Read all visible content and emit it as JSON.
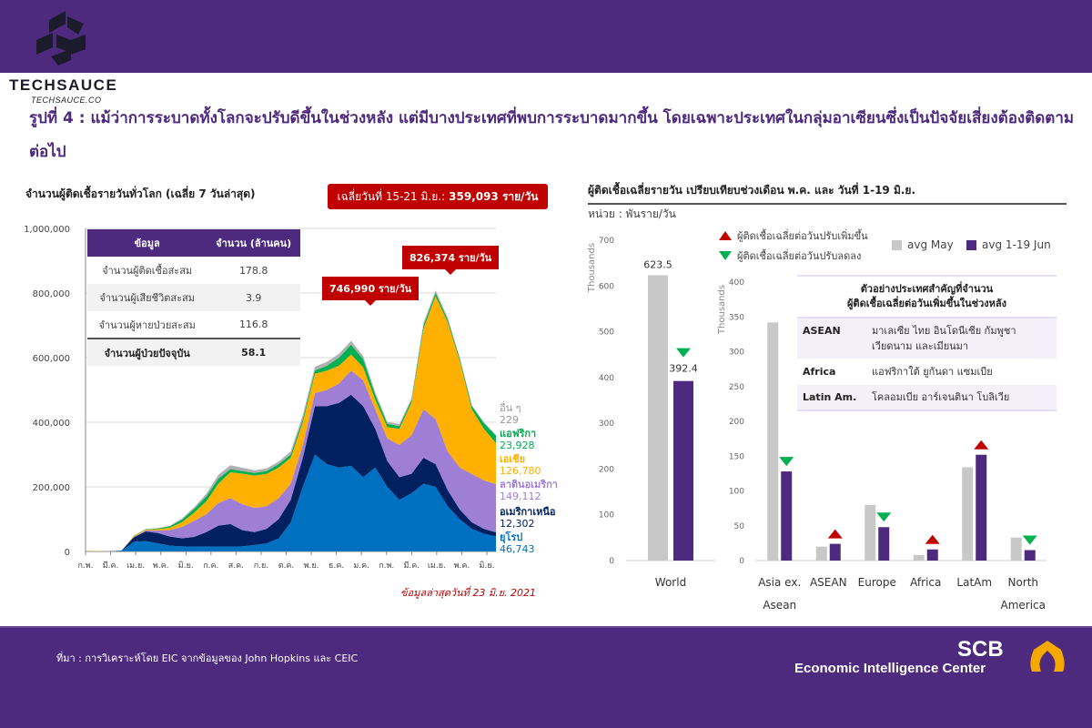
{
  "header": {
    "brand_name": "TECHSAUCE",
    "brand_url": "TECHSAUCE.CO",
    "headline": "รูปที่ 4 : แม้ว่าการระบาดทั้งโลกจะปรับดีขึ้นในช่วงหลัง แต่มีบางประเทศที่พบการระบาดมากขึ้น โดยเฉพาะประเทศในกลุ่มอาเซียนซึ่งเป็นปัจจัยเสี่ยงต้องติดตามต่อไป"
  },
  "left_panel": {
    "title": "จำนวนผู้ติดเชื้อรายวันทั่วโลก  (เฉลี่ย 7 วันล่าสุด)",
    "avg_badge_prefix": "เฉลี่ยวันที่ 15-21 มิ.ย.:",
    "avg_badge_value": "359,093 ราย/วัน",
    "callouts": [
      "746,990 ราย/วัน",
      "826,374 ราย/วัน"
    ],
    "table": {
      "headers": [
        "ข้อมูล",
        "จำนวน (ล้านคน)"
      ],
      "rows": [
        {
          "label": "จำนวนผู้ติดเชื้อสะสม",
          "value": "178.8"
        },
        {
          "label": "จำนวนผู้เสียชีวิตสะสม",
          "value": "3.9"
        },
        {
          "label": "จำนวนผู้หายป่วยสะสม",
          "value": "116.8"
        },
        {
          "label": "จำนวนผู้ป่วยปัจจุบัน",
          "value": "58.1"
        }
      ]
    },
    "note": "ข้อมูลล่าสุดวันที่ 23 มิ.ย. 2021"
  },
  "right_panel": {
    "title": "ผู้ติดเชื้อเฉลี่ยรายวัน เปรียบเทียบช่วงเดือน พ.ค. และ วันที่ 1-19 มิ.ย.",
    "unit": "หน่วย : พันราย/วัน",
    "legend_up": "ผู้ติดเชื้อเฉลี่ยต่อวันปรับเพิ่มขึ้น",
    "legend_down": "ผู้ติดเชื้อเฉลี่ยต่อวันปรับลดลง",
    "info_box": {
      "heading_line1": "ตัวอย่างประเทศสำคัญที่จำนวน",
      "heading_line2": "ผู้ติดเชื้อเฉลี่ยต่อวันเพิ่มขึ้นในช่วงหลัง",
      "rows": [
        {
          "region": "ASEAN",
          "countries": "มาเลเซีย ไทย อินโดนีเซีย กัมพูชา เวียดนาม และเมียนมา"
        },
        {
          "region": "Africa",
          "countries": "แอฟริกาใต้ ยูกันดา แซมเบีย"
        },
        {
          "region": "Latin Am.",
          "countries": "โคลอมเบีย อาร์เจนตินา โบลิเวีย"
        }
      ]
    }
  },
  "footer": {
    "source": "ที่มา : การวิเคราะห์โดย EIC จากข้อมูลของ John Hopkins และ CEIC",
    "scb": "SCB",
    "eic": "Economic Intelligence Center"
  },
  "colors": {
    "brand_purple": "#4e2a7e",
    "alert_red": "#c00000",
    "down_green": "#00b050",
    "may_gray": "#c8c8c8"
  },
  "chart_data": [
    {
      "type": "area",
      "stacked": true,
      "title": "จำนวนผู้ติดเชื้อรายวันทั่วโลก  (เฉลี่ย 7 วันล่าสุด)",
      "xlabel": "",
      "ylabel": "",
      "ylim": [
        0,
        1000000
      ],
      "yticks": [
        0,
        200000,
        400000,
        600000,
        800000,
        1000000
      ],
      "ytick_labels": [
        "0",
        "200,000",
        "400,000",
        "600,000",
        "800,000",
        "1,000,000"
      ],
      "xtick_labels": [
        "ก.พ.",
        "มี.ค.",
        "เม.ย.",
        "พ.ค.",
        "มิ.ย.",
        "ก.ค.",
        "ส.ค.",
        "ก.ย.",
        "ต.ค.",
        "พ.ย.",
        "ธ.ค.",
        "ม.ค.",
        "ก.พ.",
        "มี.ค.",
        "เม.ย.",
        "พ.ค.",
        "มิ.ย."
      ],
      "grid": true,
      "x_points": 35,
      "series": [
        {
          "name": "ยุโรป",
          "latest": "46,743",
          "color": "#0070c0",
          "values": [
            0,
            0,
            0,
            2000,
            30000,
            32000,
            25000,
            18000,
            16000,
            15000,
            15000,
            15000,
            15000,
            16000,
            20000,
            25000,
            40000,
            90000,
            200000,
            300000,
            270000,
            260000,
            265000,
            230000,
            260000,
            200000,
            160000,
            180000,
            210000,
            200000,
            140000,
            100000,
            70000,
            55000,
            47000
          ]
        },
        {
          "name": "อเมริกาเหนือ",
          "latest": "12,302",
          "color": "#002060",
          "values": [
            0,
            0,
            0,
            1000,
            14000,
            30000,
            32000,
            28000,
            25000,
            30000,
            45000,
            65000,
            70000,
            50000,
            40000,
            45000,
            60000,
            70000,
            90000,
            150000,
            180000,
            200000,
            220000,
            220000,
            120000,
            80000,
            70000,
            60000,
            80000,
            70000,
            50000,
            30000,
            20000,
            15000,
            12300
          ]
        },
        {
          "name": "ลาตินอเมริกา",
          "latest": "149,112",
          "color": "#9f7fd6",
          "values": [
            0,
            0,
            0,
            0,
            1000,
            3000,
            8000,
            20000,
            35000,
            50000,
            55000,
            70000,
            80000,
            80000,
            75000,
            70000,
            65000,
            50000,
            40000,
            40000,
            50000,
            60000,
            75000,
            80000,
            60000,
            70000,
            100000,
            120000,
            150000,
            140000,
            120000,
            130000,
            150000,
            150000,
            149000
          ]
        },
        {
          "name": "เอเชีย",
          "latest": "126,780",
          "color": "#ffb000",
          "values": [
            0,
            1000,
            0,
            0,
            3000,
            3000,
            4000,
            8000,
            15000,
            25000,
            40000,
            60000,
            80000,
            95000,
            100000,
            100000,
            95000,
            80000,
            70000,
            60000,
            60000,
            55000,
            50000,
            40000,
            30000,
            35000,
            50000,
            100000,
            250000,
            380000,
            400000,
            330000,
            200000,
            160000,
            127000
          ]
        },
        {
          "name": "แอฟริกา",
          "latest": "23,928",
          "color": "#00b050",
          "values": [
            0,
            0,
            0,
            0,
            500,
            1000,
            2000,
            4000,
            8000,
            12000,
            15000,
            15000,
            10000,
            8000,
            8000,
            9000,
            10000,
            10000,
            10000,
            10000,
            15000,
            25000,
            30000,
            25000,
            15000,
            10000,
            8000,
            8000,
            10000,
            10000,
            8000,
            7000,
            10000,
            18000,
            24000
          ]
        },
        {
          "name": "อื่น ๆ",
          "latest": "229",
          "color": "#b0b0b0",
          "values": [
            0,
            0,
            0,
            0,
            800,
            1000,
            1500,
            2000,
            3000,
            5000,
            8000,
            12000,
            12000,
            10000,
            8000,
            8000,
            8000,
            10000,
            12000,
            12000,
            12000,
            12000,
            12000,
            10000,
            8000,
            6000,
            6000,
            6000,
            8000,
            8000,
            6000,
            4000,
            3000,
            2000,
            229
          ]
        }
      ],
      "annotations": [
        {
          "text": "746,990 ราย/วัน",
          "value": 746990,
          "near": "ม.ค. 2021"
        },
        {
          "text": "826,374 ราย/วัน",
          "value": 826374,
          "near": "เม.ย.-พ.ค. 2021"
        },
        {
          "text": "เฉลี่ยวันที่ 15-21 มิ.ย.: 359,093 ราย/วัน",
          "value": 359093
        }
      ],
      "legend_placement": "right"
    },
    {
      "type": "bar",
      "title": "World",
      "ylabel": "Thousands",
      "ylim": [
        0,
        700
      ],
      "yticks": [
        0,
        100,
        200,
        300,
        400,
        500,
        600,
        700
      ],
      "categories": [
        "World"
      ],
      "series": [
        {
          "name": "avg May",
          "color": "#c8c8c8",
          "values": [
            623.5
          ]
        },
        {
          "name": "avg 1-19 Jun",
          "color": "#4e2a7e",
          "values": [
            392.4
          ]
        }
      ],
      "data_labels": [
        "623.5",
        "392.4"
      ],
      "trend": [
        "down"
      ],
      "grid": false,
      "legend_placement": "top-right"
    },
    {
      "type": "bar",
      "ylabel": "Thousands",
      "ylim": [
        0,
        400
      ],
      "yticks": [
        0,
        50,
        100,
        150,
        200,
        250,
        300,
        350,
        400
      ],
      "categories": [
        "Asia ex. Asean",
        "ASEAN",
        "Europe",
        "Africa",
        "LatAm",
        "North America"
      ],
      "category_lines": [
        [
          "Asia ex.",
          "Asean"
        ],
        [
          "ASEAN"
        ],
        [
          "Europe"
        ],
        [
          "Africa"
        ],
        [
          "LatAm"
        ],
        [
          "North",
          "America"
        ]
      ],
      "series": [
        {
          "name": "avg May",
          "color": "#c8c8c8",
          "values": [
            342,
            20,
            80,
            8,
            134,
            33
          ]
        },
        {
          "name": "avg 1-19 Jun",
          "color": "#4e2a7e",
          "values": [
            128,
            24,
            48,
            16,
            152,
            15
          ]
        }
      ],
      "trend": [
        "down",
        "up",
        "down",
        "up",
        "up",
        "down"
      ],
      "legend": [
        "avg May",
        "avg 1-19 Jun"
      ],
      "grid": false,
      "legend_placement": "top-right"
    }
  ]
}
